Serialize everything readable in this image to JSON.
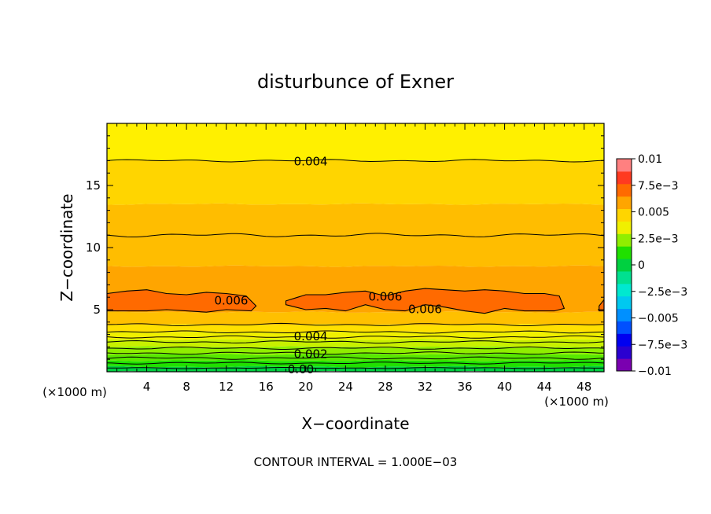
{
  "chart_data": {
    "type": "heatmap",
    "title": "disturbunce of Exner",
    "xlabel": "X−coordinate",
    "ylabel": "Z−coordinate",
    "x_unit": "(×1000 m)",
    "y_unit": "(×1000 m)",
    "xlim": [
      0,
      50
    ],
    "ylim": [
      0,
      20
    ],
    "x_ticks": [
      4,
      8,
      12,
      16,
      20,
      24,
      28,
      32,
      36,
      40,
      44,
      48
    ],
    "y_ticks": [
      5,
      10,
      15
    ],
    "contour_interval_text": "CONTOUR INTERVAL = 1.000E−03",
    "contour_interval": 0.001,
    "colorbar": {
      "levels": [
        -0.01,
        -0.00875,
        -0.0075,
        -0.00625,
        -0.005,
        -0.00375,
        -0.0025,
        -0.00125,
        0,
        0.00125,
        0.0025,
        0.00375,
        0.005,
        0.00625,
        0.0075,
        0.00875,
        0.01
      ],
      "colors": [
        "#7a00b0",
        "#2a00d0",
        "#0000f0",
        "#0050ff",
        "#0090ff",
        "#00c8f0",
        "#00e8d0",
        "#00e090",
        "#00d040",
        "#20e000",
        "#90ee00",
        "#f0f000",
        "#ffd500",
        "#ffa500",
        "#ff6a00",
        "#ff3a20",
        "#ff8080"
      ],
      "tick_values": [
        0.01,
        0.0075,
        0.005,
        0.0025,
        0,
        -0.0025,
        -0.005,
        -0.0075,
        -0.01
      ],
      "tick_labels": [
        "0.01",
        "7.5e−3",
        "0.005",
        "2.5e−3",
        "0",
        "−2.5e−3",
        "−0.005",
        "−7.5e−3",
        "−0.01"
      ]
    },
    "field_bands": [
      {
        "z0": 0.0,
        "z1": 0.4,
        "color": "#00d040"
      },
      {
        "z0": 0.4,
        "z1": 0.9,
        "color": "#20e000"
      },
      {
        "z0": 0.9,
        "z1": 1.4,
        "color": "#58e800"
      },
      {
        "z0": 1.4,
        "z1": 2.0,
        "color": "#90ee00"
      },
      {
        "z0": 2.0,
        "z1": 2.6,
        "color": "#c8f000"
      },
      {
        "z0": 2.6,
        "z1": 3.2,
        "color": "#f0f000"
      },
      {
        "z0": 3.2,
        "z1": 3.8,
        "color": "#ffe000"
      },
      {
        "z0": 3.8,
        "z1": 4.8,
        "color": "#ffc000"
      },
      {
        "z0": 4.8,
        "z1": 8.5,
        "color": "#ffa500"
      },
      {
        "z0": 8.5,
        "z1": 13.5,
        "color": "#ffbd00"
      },
      {
        "z0": 13.5,
        "z1": 20.0,
        "color": "#ffd500"
      },
      {
        "z0": 17.0,
        "z1": 20.0,
        "color": "#fff000"
      }
    ],
    "contours": [
      {
        "z": 17.0,
        "amp": 0.1
      },
      {
        "z": 11.0,
        "amp": 0.15
      },
      {
        "z": 3.8,
        "amp": 0.1
      },
      {
        "z": 3.2,
        "amp": 0.1
      },
      {
        "z": 2.8,
        "amp": 0.1
      },
      {
        "z": 2.4,
        "amp": 0.1
      },
      {
        "z": 1.9,
        "amp": 0.1
      },
      {
        "z": 1.5,
        "amp": 0.1
      },
      {
        "z": 1.1,
        "amp": 0.1
      },
      {
        "z": 0.7,
        "amp": 0.08
      },
      {
        "z": 0.3,
        "amp": 0.05
      }
    ],
    "max_regions": [
      {
        "x": [
          0,
          2,
          4,
          6,
          8,
          10,
          12,
          14,
          15,
          14.5,
          12,
          10,
          8,
          6,
          4,
          2,
          0
        ],
        "z": [
          6.3,
          6.5,
          6.6,
          6.3,
          6.2,
          6.4,
          6.3,
          6.1,
          5.3,
          4.9,
          5.0,
          4.8,
          4.9,
          5.0,
          4.9,
          4.9,
          4.9
        ],
        "color": "#ff6a00"
      },
      {
        "x": [
          18,
          20,
          22,
          24,
          26,
          28,
          30,
          32,
          34,
          36,
          38,
          40,
          42,
          44,
          45.5,
          46,
          45,
          42,
          40,
          38,
          36,
          34,
          32,
          30,
          28,
          26,
          24,
          22,
          20,
          18
        ],
        "z": [
          5.7,
          6.2,
          6.2,
          6.4,
          6.5,
          6.1,
          6.5,
          6.7,
          6.6,
          6.5,
          6.6,
          6.5,
          6.3,
          6.3,
          6.1,
          5.1,
          4.9,
          4.9,
          5.1,
          4.7,
          4.9,
          5.2,
          5.4,
          4.9,
          5.0,
          5.4,
          4.9,
          5.1,
          5.0,
          5.4
        ],
        "color": "#ff6a00"
      },
      {
        "x": [
          49.5,
          50,
          50,
          49.5
        ],
        "z": [
          5.3,
          5.8,
          4.9,
          4.9
        ],
        "color": "#ff6a00"
      }
    ],
    "contour_labels": [
      {
        "text": "0.004",
        "x": 20.5,
        "z": 17.0
      },
      {
        "text": "0.006",
        "x": 12.5,
        "z": 5.8
      },
      {
        "text": "0.006",
        "x": 28.0,
        "z": 6.1
      },
      {
        "text": "0.006",
        "x": 32.0,
        "z": 5.1
      },
      {
        "text": "0.004",
        "x": 20.5,
        "z": 2.9
      },
      {
        "text": "0.002",
        "x": 20.5,
        "z": 1.5
      },
      {
        "text": "0.00",
        "x": 19.5,
        "z": 0.25
      }
    ]
  }
}
